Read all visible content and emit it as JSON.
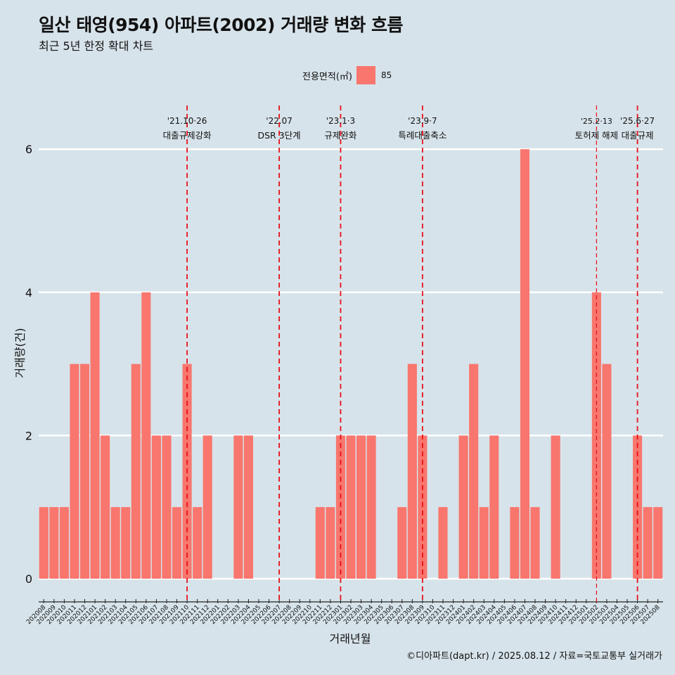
{
  "header": {
    "title": "일산 태영(954) 아파트(2002) 거래량 변화 흐름",
    "subtitle": "최근 5년 한정 확대 차트"
  },
  "legend": {
    "title": "전용면적(㎡)",
    "items": [
      {
        "label": "85",
        "color": "#f8766d"
      }
    ]
  },
  "footer": {
    "credit": "©디아파트(dapt.kr) / 2025.08.12 / 자료=국토교통부 실거래가"
  },
  "chart_data": {
    "type": "bar",
    "xlabel": "거래년월",
    "ylabel": "거래량(건)",
    "ylim": [
      0,
      6.2
    ],
    "yticks": [
      0,
      2,
      4,
      6
    ],
    "grid": true,
    "legend_position": "top",
    "bar_color": "#f8766d",
    "categories": [
      "202008",
      "202009",
      "202010",
      "202011",
      "202012",
      "202101",
      "202102",
      "202103",
      "202104",
      "202105",
      "202106",
      "202107",
      "202108",
      "202109",
      "202110",
      "202111",
      "202112",
      "202201",
      "202202",
      "202203",
      "202204",
      "202205",
      "202206",
      "202207",
      "202208",
      "202209",
      "202210",
      "202211",
      "202212",
      "202301",
      "202302",
      "202303",
      "202304",
      "202305",
      "202306",
      "202307",
      "202308",
      "202309",
      "202310",
      "202311",
      "202312",
      "202401",
      "202402",
      "202403",
      "202404",
      "202405",
      "202406",
      "202407",
      "202408",
      "202409",
      "202410",
      "202411",
      "202412",
      "202501",
      "202502",
      "202503",
      "202504",
      "202505",
      "202506",
      "202507",
      "202508"
    ],
    "series": [
      {
        "name": "85",
        "values": [
          1,
          1,
          1,
          3,
          3,
          4,
          2,
          1,
          1,
          3,
          4,
          2,
          2,
          1,
          3,
          1,
          2,
          0,
          0,
          2,
          2,
          0,
          0,
          0,
          0,
          0,
          0,
          1,
          1,
          2,
          2,
          2,
          2,
          0,
          0,
          1,
          3,
          2,
          0,
          1,
          0,
          2,
          3,
          1,
          2,
          0,
          1,
          6,
          1,
          0,
          2,
          0,
          0,
          0,
          4,
          3,
          0,
          0,
          2,
          1,
          1
        ]
      }
    ],
    "annotations": [
      {
        "x": "202110",
        "date": "'21.10·26",
        "label": "대출규제강화",
        "style": "dashed"
      },
      {
        "x": "202207",
        "date": "'22.07",
        "label": "DSR 3단계",
        "style": "dashed"
      },
      {
        "x": "202301",
        "date": "'23.1·3",
        "label": "규제완화",
        "style": "dashed"
      },
      {
        "x": "202309",
        "date": "'23.9·7",
        "label": "특례대출축소",
        "style": "dashed"
      },
      {
        "x": "202502",
        "date": "'25.2·13",
        "label": "토허제 해제",
        "style": "thin"
      },
      {
        "x": "202506",
        "date": "'25.6·27",
        "label": "대출규제",
        "style": "dashed"
      }
    ]
  }
}
